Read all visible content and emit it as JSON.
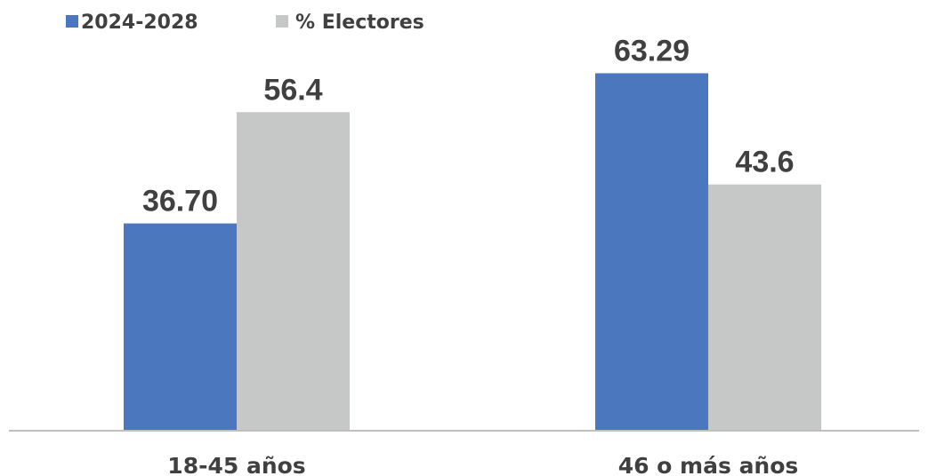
{
  "chart_data": {
    "type": "bar",
    "categories": [
      "18-45 años",
      "46 o más años"
    ],
    "series": [
      {
        "name": "2024-2028",
        "values": [
          36.7,
          63.29
        ],
        "labels": [
          "36.70",
          "63.29"
        ],
        "color": "#4a77bd"
      },
      {
        "name": "% Electores",
        "values": [
          56.4,
          43.6
        ],
        "labels": [
          "56.4",
          "43.6"
        ],
        "color": "#c6c8c7"
      }
    ],
    "ylim": [
      0,
      75
    ],
    "grid": false,
    "legend": "top-left",
    "axis_color": "#bfbfbf",
    "text_color": "#404040"
  }
}
